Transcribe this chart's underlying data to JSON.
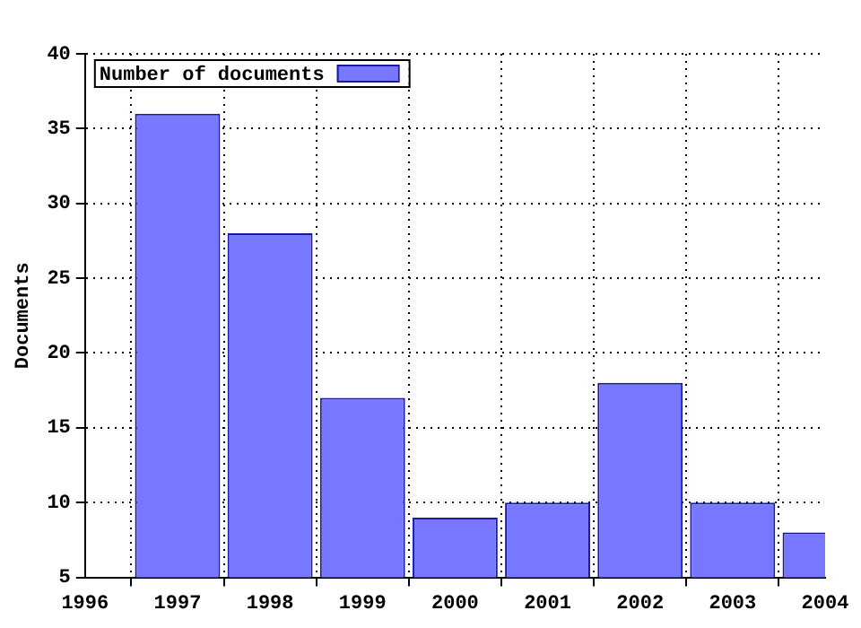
{
  "chart_data": {
    "type": "bar",
    "ylabel": "Documents",
    "x": [
      1997,
      1998,
      1999,
      2000,
      2001,
      2002,
      2003,
      2004
    ],
    "series": [
      {
        "name": "Number of documents",
        "color": "#7777ff",
        "values": [
          36,
          28,
          17,
          9,
          10,
          18,
          10,
          8
        ]
      }
    ],
    "xlim": [
      1996,
      2004
    ],
    "xticks": [
      1996,
      1997,
      1998,
      1999,
      2000,
      2001,
      2002,
      2003,
      2004
    ],
    "ylim": [
      5,
      40
    ],
    "yticks": [
      5,
      10,
      15,
      20,
      25,
      30,
      35,
      40
    ],
    "grid": true,
    "legend": "top left"
  }
}
